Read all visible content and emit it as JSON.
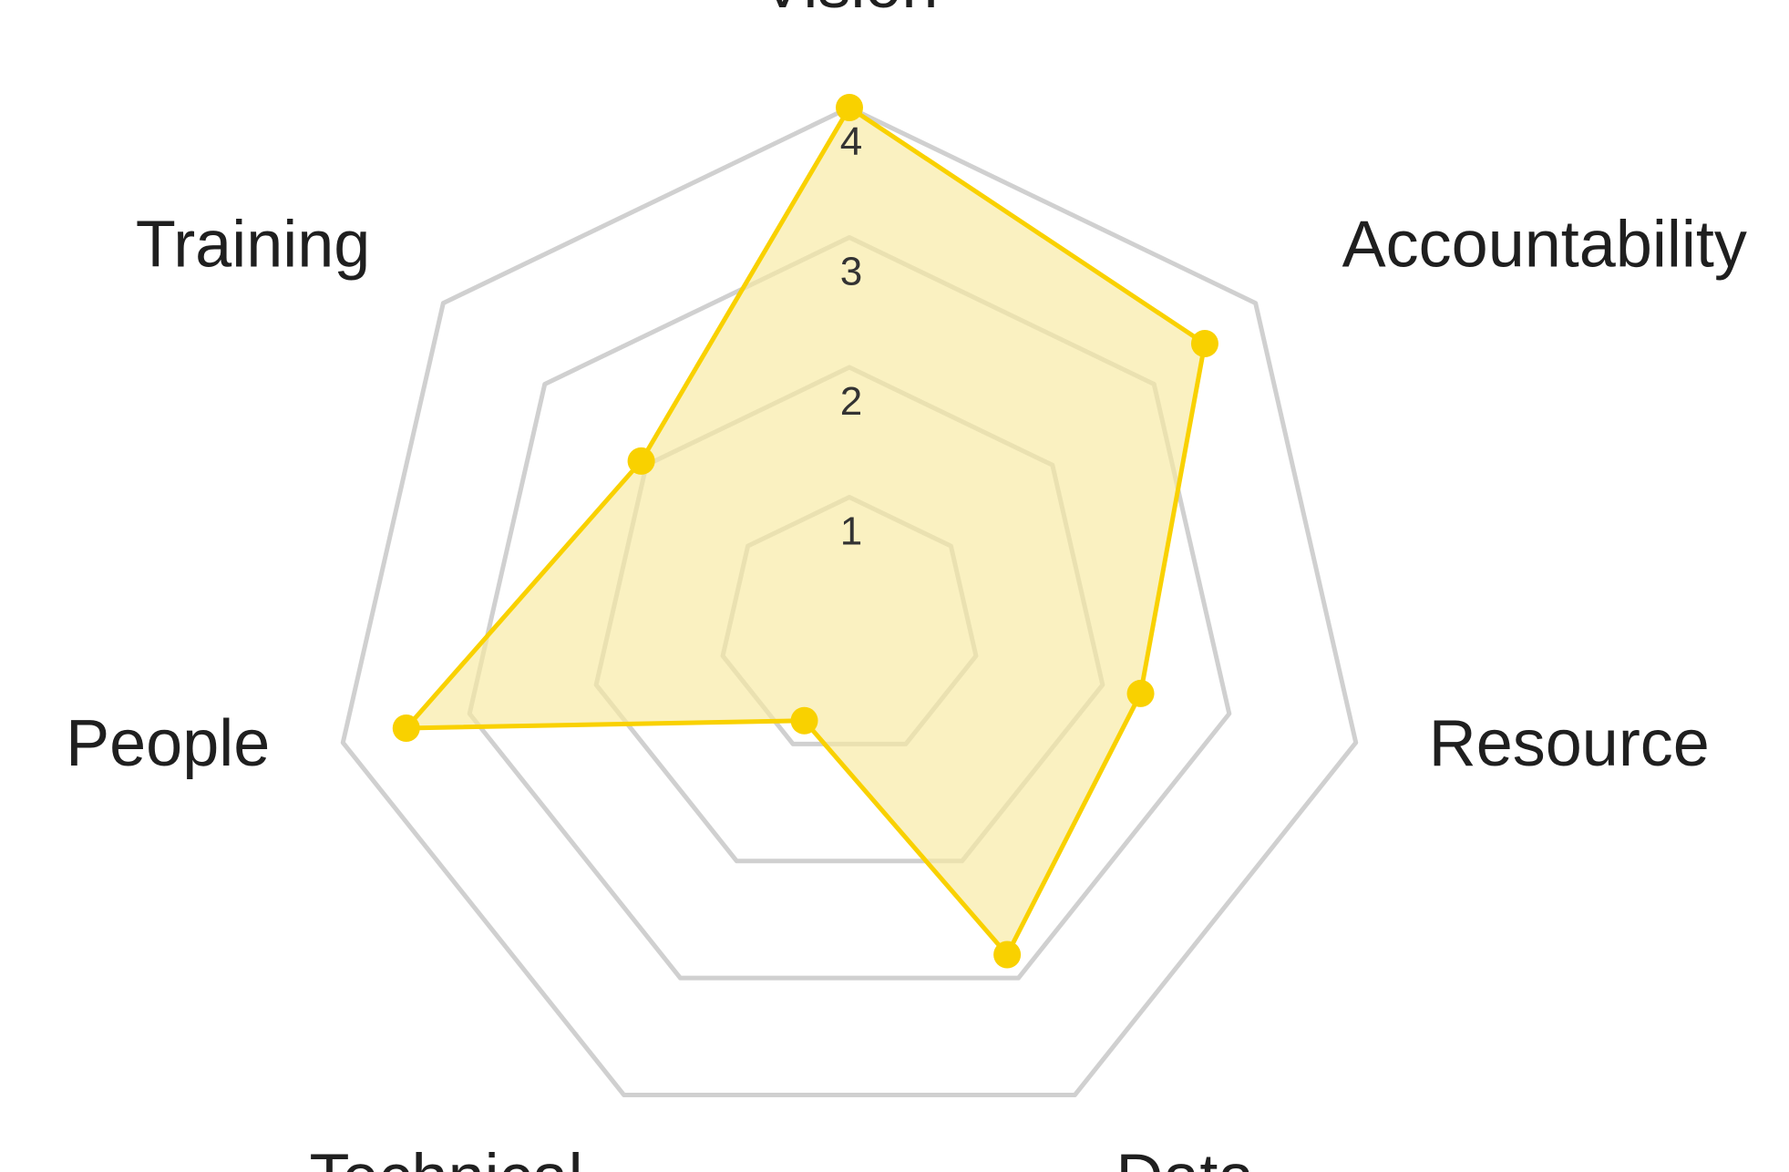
{
  "chart_data": {
    "type": "radar",
    "axes": [
      "Vision",
      "Accountability",
      "Resource",
      "Data",
      "Technical",
      "People",
      "Training"
    ],
    "rlim": [
      0,
      4
    ],
    "ticks": [
      1,
      2,
      3,
      4
    ],
    "tick_labels": [
      "1",
      "2",
      "3",
      "4"
    ],
    "series": [
      {
        "values": [
          4.0,
          3.5,
          2.3,
          2.8,
          0.8,
          3.5,
          2.05
        ],
        "color": "#f9d100",
        "fill": "#f7eaa0"
      }
    ],
    "grid": true,
    "grid_color": "#d0d0d0",
    "legend": "none"
  }
}
